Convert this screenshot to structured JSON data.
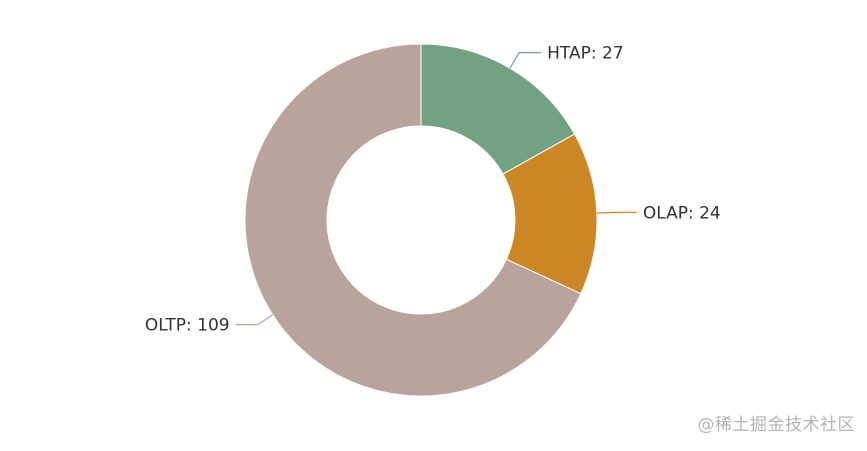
{
  "chart_data": {
    "type": "pie",
    "donut": true,
    "legend": "none",
    "slices": [
      {
        "label": "HTAP",
        "value": 27,
        "color": "#72a283"
      },
      {
        "label": "OLAP",
        "value": 24,
        "color": "#cb8625"
      },
      {
        "label": "OLTP",
        "value": 109,
        "color": "#bba39d"
      }
    ]
  },
  "watermark": "@稀土掘金技术社区"
}
